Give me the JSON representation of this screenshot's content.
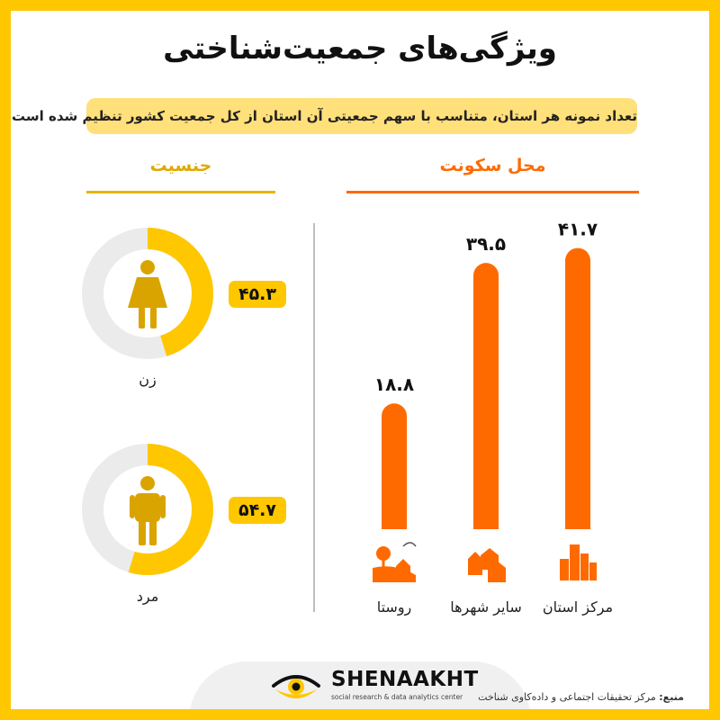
{
  "title": "ویژگی‌های جمعیت‌شناختی",
  "subtitle": "تعداد نمونه هر استان، متناسب با سهم جمعیتی آن استان از کل جمعیت کشور تنظیم شده است.",
  "residence": {
    "title": "محل سکونت"
  },
  "gender": {
    "title": "جنسیت",
    "items": [
      {
        "label": "زن",
        "value_text": "۴۵.۳",
        "value": 45.3,
        "icon": "woman-icon"
      },
      {
        "label": "مرد",
        "value_text": "۵۴.۷",
        "value": 54.7,
        "icon": "man-icon"
      }
    ]
  },
  "chart_data": {
    "type": "bar",
    "categories": [
      "مرکز استان",
      "سایر شهرها",
      "روستا"
    ],
    "value_labels": [
      "۴۱.۷",
      "۳۹.۵",
      "۱۸.۸"
    ],
    "values": [
      41.7,
      39.5,
      18.8
    ],
    "icons": [
      "city-buildings-icon",
      "town-houses-icon",
      "village-icon"
    ],
    "color": "#ff6a00"
  },
  "footer": {
    "brand": "SHENAAKHT",
    "tagline": "social research & data analytics center",
    "source_label": "منبع:",
    "source_text": "مرکز تحقیقات اجتماعی و داده‌کاوی شناخت"
  },
  "colors": {
    "frame": "#ffc700",
    "accent_orange": "#ff6a00",
    "accent_yellow": "#ffc700",
    "subtitle_bg": "#ffe07a",
    "icon_gold": "#d9a400"
  }
}
